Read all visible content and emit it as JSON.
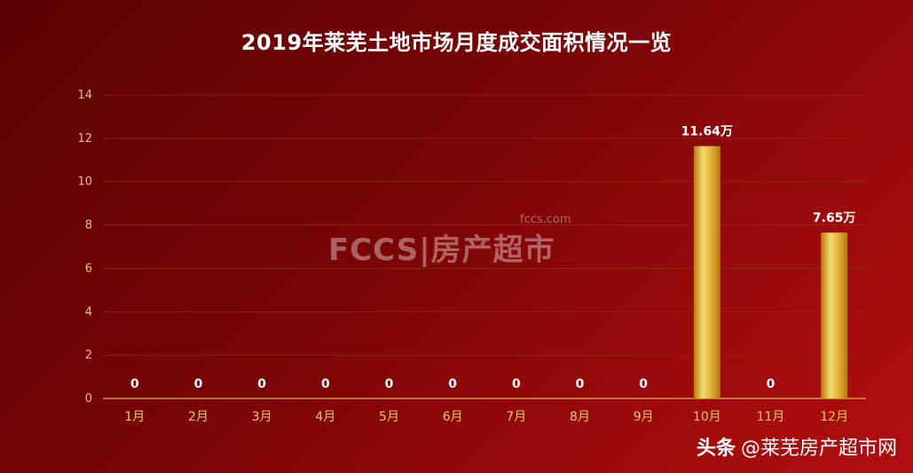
{
  "chart_data": {
    "type": "bar",
    "title": "2019年莱芜土地市场月度成交面积情况一览",
    "categories": [
      "1月",
      "2月",
      "3月",
      "4月",
      "5月",
      "6月",
      "7月",
      "8月",
      "9月",
      "10月",
      "11月",
      "12月"
    ],
    "values": [
      0,
      0,
      0,
      0,
      0,
      0,
      0,
      0,
      0,
      11.64,
      0,
      7.65
    ],
    "data_labels": [
      "0",
      "0",
      "0",
      "0",
      "0",
      "0",
      "0",
      "0",
      "0",
      "11.64万",
      "0",
      "7.65万"
    ],
    "ylim": [
      0,
      14
    ],
    "yticks": [
      0,
      2,
      4,
      6,
      8,
      10,
      12,
      14
    ],
    "grid": true,
    "legend": "none"
  },
  "watermark": {
    "small": "fccs.com",
    "big": "FCCS|房产超市"
  },
  "credit": {
    "brand": "头条",
    "account": "@莱芜房产超市网"
  },
  "colors": {
    "bar_light": "#f4dc6a",
    "bar_dark": "#b9760f",
    "tick": "#e8c76a",
    "grid": "#8e2a14"
  }
}
